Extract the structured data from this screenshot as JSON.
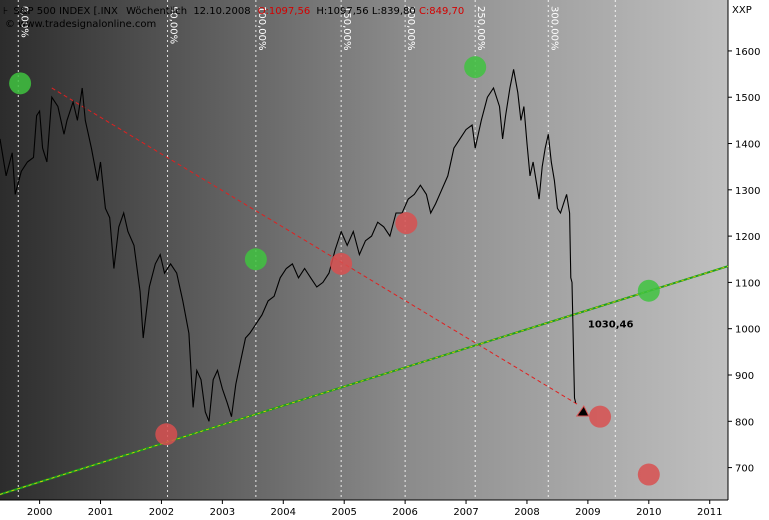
{
  "header": {
    "prefix": "S&P 500 INDEX [.INX",
    "period": "Wöchentlich",
    "date": "12.10.2008",
    "open": "O:1097,56",
    "high": "H:1097,56",
    "low": "L:839,80",
    "close": "C:849,70",
    "website": "© www.tradesignalonline.com",
    "symbol": "XXP",
    "colors": {
      "open": "#d40000",
      "close": "#d40000",
      "text": "#000000"
    }
  },
  "chart_data": {
    "type": "line",
    "title": "",
    "xlabel": "",
    "ylabel": "",
    "ylim": [
      630,
      1710
    ],
    "xlim": [
      1999.35,
      2011.3
    ],
    "y_ticks": [
      700,
      800,
      900,
      1000,
      1100,
      1200,
      1300,
      1400,
      1500,
      1600
    ],
    "x_ticks": [
      {
        "label": "2000",
        "x": 2000.0
      },
      {
        "label": "2001",
        "x": 2001.0
      },
      {
        "label": "2002",
        "x": 2002.0
      },
      {
        "label": "2003",
        "x": 2003.0
      },
      {
        "label": "2004",
        "x": 2004.0
      },
      {
        "label": "2005",
        "x": 2005.0
      },
      {
        "label": "2006",
        "x": 2006.0
      },
      {
        "label": "2007",
        "x": 2007.0
      },
      {
        "label": "2008",
        "x": 2008.0
      },
      {
        "label": "2009",
        "x": 2009.0
      },
      {
        "label": "2010",
        "x": 2010.0
      },
      {
        "label": "2011",
        "x": 2011.0
      }
    ],
    "percent_lines": [
      {
        "label": "0,00%",
        "x": 1999.65
      },
      {
        "label": "50,00%",
        "x": 2002.1
      },
      {
        "label": "100,00%",
        "x": 2003.55
      },
      {
        "label": "150,00%",
        "x": 2004.95
      },
      {
        "label": "200,00%",
        "x": 2006.0
      },
      {
        "label": "250,00%",
        "x": 2007.15
      },
      {
        "label": "300,00%",
        "x": 2008.35
      },
      {
        "label": "",
        "x": 2009.45
      }
    ],
    "grid": true,
    "series": [
      {
        "values": [
          [
            1999.35,
            1410
          ],
          [
            1999.45,
            1330
          ],
          [
            1999.55,
            1380
          ],
          [
            1999.6,
            1290
          ],
          [
            1999.7,
            1340
          ],
          [
            1999.8,
            1360
          ],
          [
            1999.9,
            1370
          ],
          [
            1999.95,
            1460
          ],
          [
            2000.0,
            1470
          ],
          [
            2000.05,
            1390
          ],
          [
            2000.12,
            1360
          ],
          [
            2000.2,
            1500
          ],
          [
            2000.3,
            1480
          ],
          [
            2000.4,
            1420
          ],
          [
            2000.45,
            1450
          ],
          [
            2000.55,
            1490
          ],
          [
            2000.62,
            1450
          ],
          [
            2000.7,
            1520
          ],
          [
            2000.75,
            1450
          ],
          [
            2000.85,
            1390
          ],
          [
            2000.95,
            1320
          ],
          [
            2001.0,
            1360
          ],
          [
            2001.08,
            1260
          ],
          [
            2001.15,
            1240
          ],
          [
            2001.22,
            1130
          ],
          [
            2001.3,
            1220
          ],
          [
            2001.38,
            1250
          ],
          [
            2001.45,
            1210
          ],
          [
            2001.55,
            1180
          ],
          [
            2001.65,
            1080
          ],
          [
            2001.7,
            980
          ],
          [
            2001.8,
            1090
          ],
          [
            2001.9,
            1140
          ],
          [
            2001.98,
            1160
          ],
          [
            2002.05,
            1120
          ],
          [
            2002.15,
            1140
          ],
          [
            2002.25,
            1120
          ],
          [
            2002.35,
            1060
          ],
          [
            2002.45,
            990
          ],
          [
            2002.52,
            830
          ],
          [
            2002.58,
            910
          ],
          [
            2002.65,
            890
          ],
          [
            2002.72,
            820
          ],
          [
            2002.78,
            800
          ],
          [
            2002.85,
            890
          ],
          [
            2002.92,
            910
          ],
          [
            2003.0,
            870
          ],
          [
            2003.08,
            840
          ],
          [
            2003.15,
            810
          ],
          [
            2003.22,
            880
          ],
          [
            2003.3,
            930
          ],
          [
            2003.38,
            980
          ],
          [
            2003.45,
            990
          ],
          [
            2003.55,
            1010
          ],
          [
            2003.65,
            1030
          ],
          [
            2003.75,
            1060
          ],
          [
            2003.85,
            1070
          ],
          [
            2003.95,
            1110
          ],
          [
            2004.05,
            1130
          ],
          [
            2004.15,
            1140
          ],
          [
            2004.25,
            1110
          ],
          [
            2004.35,
            1130
          ],
          [
            2004.45,
            1110
          ],
          [
            2004.55,
            1090
          ],
          [
            2004.65,
            1100
          ],
          [
            2004.75,
            1120
          ],
          [
            2004.85,
            1170
          ],
          [
            2004.95,
            1210
          ],
          [
            2005.05,
            1180
          ],
          [
            2005.15,
            1210
          ],
          [
            2005.25,
            1160
          ],
          [
            2005.35,
            1190
          ],
          [
            2005.45,
            1200
          ],
          [
            2005.55,
            1230
          ],
          [
            2005.65,
            1220
          ],
          [
            2005.75,
            1200
          ],
          [
            2005.85,
            1250
          ],
          [
            2005.95,
            1250
          ],
          [
            2006.05,
            1280
          ],
          [
            2006.15,
            1290
          ],
          [
            2006.25,
            1310
          ],
          [
            2006.35,
            1290
          ],
          [
            2006.42,
            1250
          ],
          [
            2006.5,
            1270
          ],
          [
            2006.6,
            1300
          ],
          [
            2006.7,
            1330
          ],
          [
            2006.8,
            1390
          ],
          [
            2006.9,
            1410
          ],
          [
            2007.0,
            1430
          ],
          [
            2007.1,
            1440
          ],
          [
            2007.15,
            1390
          ],
          [
            2007.25,
            1450
          ],
          [
            2007.35,
            1500
          ],
          [
            2007.45,
            1520
          ],
          [
            2007.55,
            1480
          ],
          [
            2007.6,
            1410
          ],
          [
            2007.65,
            1460
          ],
          [
            2007.72,
            1520
          ],
          [
            2007.78,
            1560
          ],
          [
            2007.85,
            1510
          ],
          [
            2007.9,
            1450
          ],
          [
            2007.95,
            1480
          ],
          [
            2008.0,
            1400
          ],
          [
            2008.05,
            1330
          ],
          [
            2008.1,
            1360
          ],
          [
            2008.15,
            1320
          ],
          [
            2008.2,
            1280
          ],
          [
            2008.25,
            1350
          ],
          [
            2008.3,
            1390
          ],
          [
            2008.35,
            1420
          ],
          [
            2008.4,
            1360
          ],
          [
            2008.45,
            1320
          ],
          [
            2008.5,
            1260
          ],
          [
            2008.55,
            1250
          ],
          [
            2008.6,
            1270
          ],
          [
            2008.65,
            1290
          ],
          [
            2008.7,
            1250
          ],
          [
            2008.72,
            1110
          ],
          [
            2008.74,
            1100
          ],
          [
            2008.78,
            850
          ],
          [
            2008.8,
            840
          ]
        ]
      },
      {
        "values": [
          [
            2000.2,
            1520
          ],
          [
            2008.85,
            835
          ]
        ]
      },
      {
        "values": [
          [
            1999.35,
            642
          ],
          [
            2011.3,
            1135
          ]
        ]
      }
    ],
    "annotations": [
      {
        "label": "1030,46",
        "x": 2009.0,
        "y": 1003
      }
    ],
    "markers": [
      {
        "x": 1999.68,
        "y": 1530,
        "color": "#3fc33f"
      },
      {
        "x": 2002.08,
        "y": 772,
        "color": "#d85050"
      },
      {
        "x": 2003.55,
        "y": 1150,
        "color": "#3fc33f"
      },
      {
        "x": 2004.95,
        "y": 1140,
        "color": "#d85050"
      },
      {
        "x": 2006.02,
        "y": 1228,
        "color": "#d85050"
      },
      {
        "x": 2007.15,
        "y": 1565,
        "color": "#3fc33f"
      },
      {
        "x": 2009.2,
        "y": 810,
        "color": "#d85050"
      },
      {
        "x": 2010.0,
        "y": 1082,
        "color": "#3fc33f"
      },
      {
        "x": 2010.0,
        "y": 685,
        "color": "#d85050"
      }
    ],
    "colors": {
      "price": "#000000",
      "trend_down": "#e02020",
      "trend_up": "#1ea01e",
      "trend_up_core": "#ffd000",
      "label": "#22c022"
    }
  }
}
